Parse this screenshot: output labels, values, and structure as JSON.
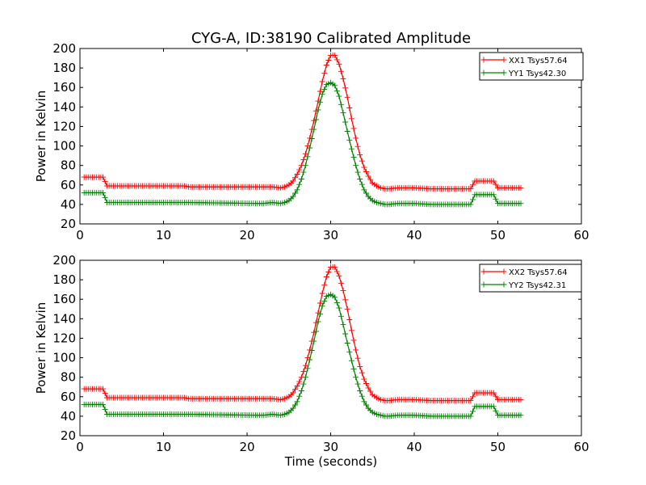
{
  "figure": {
    "title": "CYG-A, ID:38190 Calibrated Amplitude",
    "xlabel": "Time (seconds)"
  },
  "chart_data": [
    {
      "type": "line",
      "title": "CYG-A, ID:38190 Calibrated Amplitude",
      "xlabel": "",
      "ylabel": "Power in Kelvin",
      "xlim": [
        0,
        60
      ],
      "ylim": [
        20,
        200
      ],
      "xticks": [
        0,
        10,
        20,
        30,
        40,
        50,
        60
      ],
      "yticks": [
        20,
        40,
        60,
        80,
        100,
        120,
        140,
        160,
        180,
        200
      ],
      "grid": false,
      "legend_position": "top-right",
      "series": [
        {
          "name": "XX1 Tsys57.64",
          "color": "#ff0000",
          "marker": "plus",
          "x": [
            0.5,
            2.75,
            3.25,
            12.5,
            13,
            21,
            22,
            23,
            24,
            24.5,
            25,
            25.5,
            26,
            26.5,
            27,
            27.5,
            28,
            28.5,
            29,
            29.5,
            30,
            30.5,
            31,
            31.5,
            32,
            32.5,
            33,
            33.5,
            34,
            34.5,
            35,
            35.5,
            36,
            36.5,
            37,
            38,
            40,
            42,
            44,
            46.75,
            47.25,
            49,
            49.5,
            50,
            52.75
          ],
          "y": [
            68,
            68,
            59,
            59,
            58,
            58,
            58,
            58,
            57,
            58,
            60,
            64,
            71,
            80,
            92,
            108,
            126,
            146,
            166,
            183,
            193,
            193,
            184,
            169,
            150,
            128,
            108,
            91,
            78,
            69,
            62,
            59,
            57,
            56,
            56,
            57,
            57,
            56,
            56,
            56,
            64,
            64,
            64,
            57,
            57
          ]
        },
        {
          "name": "YY1 Tsys42.30",
          "color": "#008000",
          "marker": "plus",
          "x": [
            0.5,
            2.75,
            3.25,
            12.5,
            13,
            21,
            22,
            23,
            24,
            24.5,
            25,
            25.5,
            26,
            26.5,
            27,
            27.5,
            28,
            28.5,
            29,
            29.5,
            30,
            30.5,
            31,
            31.5,
            32,
            32.5,
            33,
            33.5,
            34,
            34.5,
            35,
            35.5,
            36,
            36.5,
            37,
            38,
            40,
            42,
            44,
            46.75,
            47.25,
            49,
            49.5,
            50,
            52.75
          ],
          "y": [
            52,
            52,
            42,
            42,
            42,
            41,
            41,
            42,
            41,
            42,
            44,
            48,
            55,
            66,
            80,
            98,
            117,
            137,
            153,
            163,
            165,
            162,
            151,
            134,
            115,
            97,
            80,
            66,
            55,
            48,
            44,
            42,
            41,
            40,
            40,
            41,
            41,
            40,
            40,
            40,
            50,
            50,
            50,
            41,
            41
          ]
        }
      ]
    },
    {
      "type": "line",
      "title": "",
      "xlabel": "Time (seconds)",
      "ylabel": "Power in Kelvin",
      "xlim": [
        0,
        60
      ],
      "ylim": [
        20,
        200
      ],
      "xticks": [
        0,
        10,
        20,
        30,
        40,
        50,
        60
      ],
      "yticks": [
        20,
        40,
        60,
        80,
        100,
        120,
        140,
        160,
        180,
        200
      ],
      "grid": false,
      "legend_position": "top-right",
      "series": [
        {
          "name": "XX2 Tsys57.64",
          "color": "#ff0000",
          "marker": "plus",
          "x": [
            0.5,
            2.75,
            3.25,
            12.5,
            13,
            21,
            22,
            23,
            24,
            24.5,
            25,
            25.5,
            26,
            26.5,
            27,
            27.5,
            28,
            28.5,
            29,
            29.5,
            30,
            30.5,
            31,
            31.5,
            32,
            32.5,
            33,
            33.5,
            34,
            34.5,
            35,
            35.5,
            36,
            36.5,
            37,
            38,
            40,
            42,
            44,
            46.75,
            47.25,
            49,
            49.5,
            50,
            52.75
          ],
          "y": [
            68,
            68,
            59,
            59,
            58,
            58,
            58,
            58,
            57,
            58,
            60,
            64,
            71,
            80,
            92,
            108,
            126,
            146,
            166,
            183,
            193,
            193,
            184,
            169,
            150,
            128,
            108,
            91,
            78,
            69,
            62,
            59,
            57,
            56,
            56,
            57,
            57,
            56,
            56,
            56,
            64,
            64,
            64,
            57,
            57
          ]
        },
        {
          "name": "YY2 Tsys42.31",
          "color": "#008000",
          "marker": "plus",
          "x": [
            0.5,
            2.75,
            3.25,
            12.5,
            13,
            21,
            22,
            23,
            24,
            24.5,
            25,
            25.5,
            26,
            26.5,
            27,
            27.5,
            28,
            28.5,
            29,
            29.5,
            30,
            30.5,
            31,
            31.5,
            32,
            32.5,
            33,
            33.5,
            34,
            34.5,
            35,
            35.5,
            36,
            36.5,
            37,
            38,
            40,
            42,
            44,
            46.75,
            47.25,
            49,
            49.5,
            50,
            52.75
          ],
          "y": [
            52,
            52,
            42,
            42,
            42,
            41,
            41,
            42,
            41,
            42,
            44,
            48,
            55,
            66,
            80,
            98,
            117,
            137,
            153,
            163,
            165,
            162,
            151,
            134,
            115,
            97,
            80,
            66,
            55,
            48,
            44,
            42,
            41,
            40,
            40,
            41,
            41,
            40,
            40,
            40,
            50,
            50,
            50,
            41,
            41
          ]
        }
      ]
    }
  ]
}
